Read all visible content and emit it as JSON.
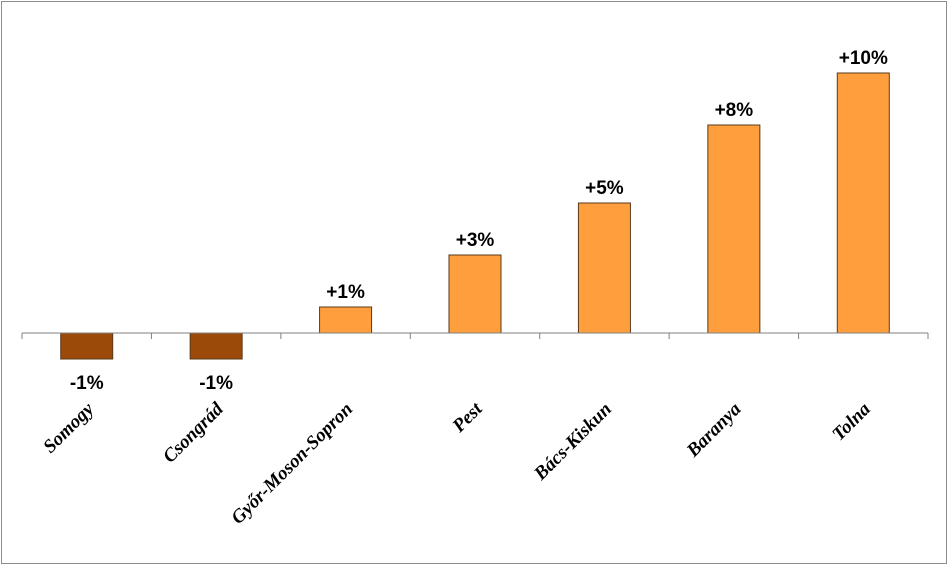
{
  "chart_data": {
    "type": "bar",
    "categories": [
      "Somogy",
      "Csongrád",
      "Győr-Moson-Sopron",
      "Pest",
      "Bács-Kiskun",
      "Baranya",
      "Tolna"
    ],
    "values": [
      -1,
      -1,
      1,
      3,
      5,
      8,
      10
    ],
    "data_labels": [
      "-1%",
      "-1%",
      "+1%",
      "+3%",
      "+5%",
      "+8%",
      "+10%"
    ],
    "ylim": [
      -1,
      10
    ],
    "colors": {
      "positive": "#FF9E3D",
      "negative": "#9C4A0A",
      "bar_stroke": "#5a3a1a",
      "axis": "#808080"
    },
    "grid": false,
    "legend": "none"
  }
}
